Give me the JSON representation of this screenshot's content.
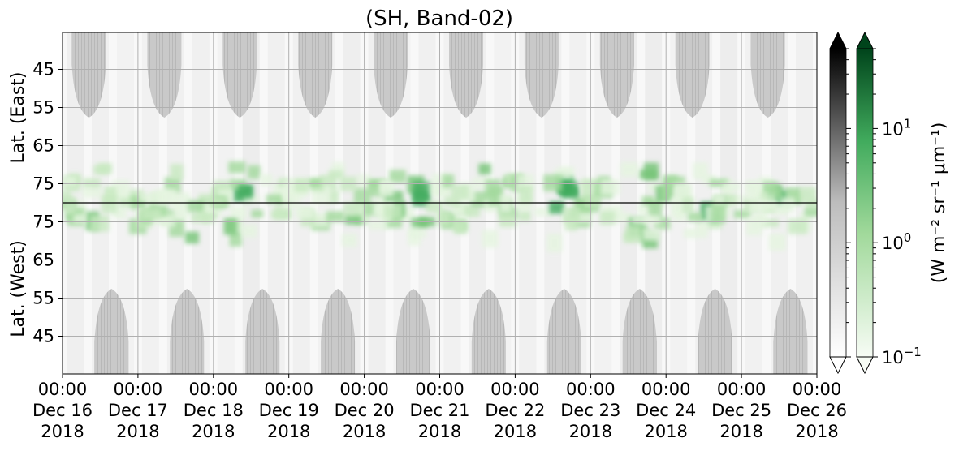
{
  "chart_data": {
    "type": "heatmap",
    "title": "(SH, Band-02)",
    "xlabel": "",
    "ylabel_top": "Lat. (East)",
    "ylabel_bottom": "Lat. (West)",
    "x_ticks": [
      {
        "time": "00:00",
        "date": "Dec 16",
        "year": "2018"
      },
      {
        "time": "00:00",
        "date": "Dec 17",
        "year": "2018"
      },
      {
        "time": "00:00",
        "date": "Dec 18",
        "year": "2018"
      },
      {
        "time": "00:00",
        "date": "Dec 19",
        "year": "2018"
      },
      {
        "time": "00:00",
        "date": "Dec 20",
        "year": "2018"
      },
      {
        "time": "00:00",
        "date": "Dec 21",
        "year": "2018"
      },
      {
        "time": "00:00",
        "date": "Dec 22",
        "year": "2018"
      },
      {
        "time": "00:00",
        "date": "Dec 23",
        "year": "2018"
      },
      {
        "time": "00:00",
        "date": "Dec 24",
        "year": "2018"
      },
      {
        "time": "00:00",
        "date": "Dec 25",
        "year": "2018"
      },
      {
        "time": "00:00",
        "date": "Dec 26",
        "year": "2018"
      }
    ],
    "y_ticks_top": [
      "45",
      "55",
      "65",
      "75"
    ],
    "y_ticks_bottom": [
      "75",
      "65",
      "55",
      "45"
    ],
    "colorbar_label": "(W m⁻² sr⁻¹ μm⁻¹)",
    "colorbar_ticks": [
      {
        "base": "10",
        "exp": "1"
      },
      {
        "base": "10",
        "exp": "0"
      },
      {
        "base": "10",
        "exp": "−1"
      }
    ],
    "colorbar_range": [
      0.1,
      50
    ],
    "colorbar_scale": "log",
    "colormaps": [
      {
        "name": "Greys",
        "low": "#ffffff",
        "high": "#000000"
      },
      {
        "name": "Greens",
        "low": "#f7fcf5",
        "high": "#00441b"
      }
    ],
    "grid": true,
    "days": [
      {
        "day": "Dec 16",
        "top_blob_center": 0.35,
        "bottom_blob_center": 0.65,
        "aurora_peak": [
          0.25,
          0.6
        ]
      },
      {
        "day": "Dec 17",
        "top_blob_center": 0.35,
        "bottom_blob_center": 0.65,
        "aurora_peak": [
          0.5,
          0.8
        ]
      },
      {
        "day": "Dec 18",
        "top_blob_center": 0.35,
        "bottom_blob_center": 0.65,
        "aurora_peak": [
          0.2,
          0.7
        ]
      },
      {
        "day": "Dec 19",
        "top_blob_center": 0.35,
        "bottom_blob_center": 0.65,
        "aurora_peak": [
          0.6,
          0.85
        ]
      },
      {
        "day": "Dec 20",
        "top_blob_center": 0.35,
        "bottom_blob_center": 0.65,
        "aurora_peak": [
          0.3,
          0.9
        ]
      },
      {
        "day": "Dec 21",
        "top_blob_center": 0.35,
        "bottom_blob_center": 0.65,
        "aurora_peak": [
          0.4,
          0.65
        ]
      },
      {
        "day": "Dec 22",
        "top_blob_center": 0.35,
        "bottom_blob_center": 0.65,
        "aurora_peak": [
          0.5,
          0.75
        ]
      },
      {
        "day": "Dec 23",
        "top_blob_center": 0.35,
        "bottom_blob_center": 0.65,
        "aurora_peak": [
          0.45,
          0.95
        ]
      },
      {
        "day": "Dec 24",
        "top_blob_center": 0.35,
        "bottom_blob_center": 0.65,
        "aurora_peak": [
          0.3,
          0.6
        ]
      },
      {
        "day": "Dec 25",
        "top_blob_center": 0.35,
        "bottom_blob_center": 0.65,
        "aurora_peak": [
          0.4,
          0.8
        ]
      }
    ]
  }
}
